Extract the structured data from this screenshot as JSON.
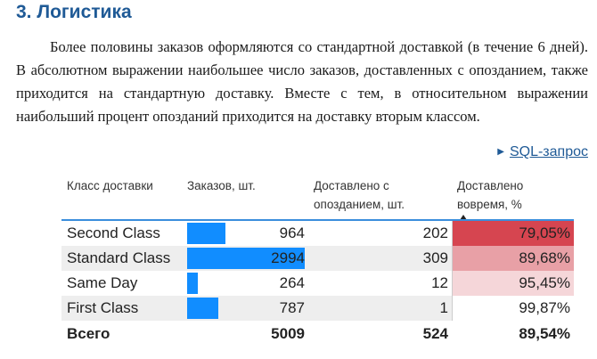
{
  "section": {
    "title": "3. Логистика",
    "paragraph": "Более половины заказов оформляются со стандартной доставкой (в течение 6 дней). В абсолютном выражении наибольшее число заказов, доставленных с опозданием, также приходится на стандартную доставку. Вместе с тем, в относительном выражении наибольший процент опозданий приходится на доставку вторым классом.",
    "sql_link": "SQL-запрос"
  },
  "table": {
    "columns": [
      "Класс доставки",
      "Заказов, шт.",
      "Доставлено с опозданием, шт.",
      "Доставлено вовремя, %"
    ],
    "sorted_column": "Доставлено вовремя, %",
    "sort_direction": "ascending",
    "rows": [
      {
        "name": "Second Class",
        "orders": "964",
        "orders_value": 964,
        "late": "202",
        "pct": "79,05%",
        "pct_color": "#d64550"
      },
      {
        "name": "Standard Class",
        "orders": "2994",
        "orders_value": 2994,
        "late": "309",
        "pct": "89,68%",
        "pct_color": "#e8a0a6"
      },
      {
        "name": "Same Day",
        "orders": "264",
        "orders_value": 264,
        "late": "12",
        "pct": "95,45%",
        "pct_color": "#f5d6d9"
      },
      {
        "name": "First Class",
        "orders": "787",
        "orders_value": 787,
        "late": "1",
        "pct": "99,87%",
        "pct_color": "#ffffff"
      }
    ],
    "total": {
      "name": "Всего",
      "orders": "5009",
      "late": "524",
      "pct": "89,54%"
    },
    "bar_color": "#118dff",
    "orders_max": 2994
  }
}
